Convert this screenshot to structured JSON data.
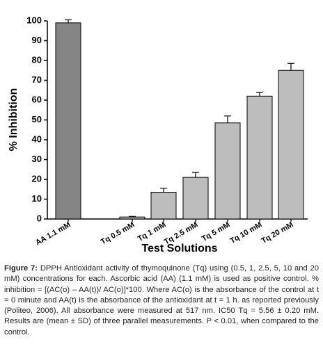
{
  "chart_data": {
    "type": "bar",
    "xlabel": "Test Solutions",
    "ylabel": "% Inhibition",
    "categories": [
      "AA 1.1 mM",
      "Tq 0.5 mM",
      "Tq 1 mM",
      "Tq 2.5 mM",
      "Tq 5 mM",
      "Tq 10 mM",
      "Tq 20 mM"
    ],
    "values": [
      99,
      1,
      13.5,
      21,
      48.5,
      62,
      75
    ],
    "errors": [
      1.5,
      0.3,
      2,
      2.5,
      3.5,
      2,
      3.5
    ],
    "colors": [
      "#858585",
      "#bdbdbd",
      "#bdbdbd",
      "#bdbdbd",
      "#bdbdbd",
      "#bdbdbd",
      "#bdbdbd"
    ],
    "ylim": [
      0,
      100
    ],
    "yticks": [
      0,
      10,
      20,
      30,
      40,
      50,
      60,
      70,
      80,
      90,
      100
    ]
  },
  "caption": {
    "label": "Figure 7:",
    "text": "DPPH Antioxidant activity of thymoquinone (Tq) using (0.5, 1, 2.5, 5, 10 and 20 mM) concentrations for each. Ascorbic acid (AA) (1.1 mM) is used as positive control. % inhibition = [(AC(o) – AA(t))/ AC(o)]*100. Where AC(o) is the absorbance of the control at t = 0 minute and AA(t) is the absorbance of the antioxidant at t = 1 h. as reported previously (Politeo, 2006). All absorbance were measured at 517 nm. IC50 Tq = 5.56 ± 0.20 mM. Results are (mean ± SD) of three parallel measurements. P < 0.01, when compared to the control."
  }
}
